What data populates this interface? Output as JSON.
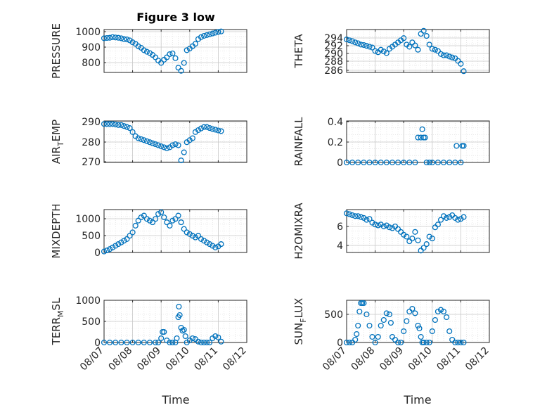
{
  "chart_data": [
    {
      "type": "scatter",
      "title": "Figure 3 low",
      "ylabel": "PRESSURE",
      "ylim": [
        740,
        1010
      ],
      "yticks": [
        "800",
        "900",
        "1000"
      ],
      "xlim": [
        0,
        5
      ],
      "xticks": [],
      "grid": true,
      "x": [
        0.0,
        0.1,
        0.2,
        0.3,
        0.4,
        0.5,
        0.6,
        0.7,
        0.8,
        0.9,
        1.0,
        1.1,
        1.2,
        1.3,
        1.4,
        1.5,
        1.6,
        1.7,
        1.8,
        1.9,
        2.0,
        2.1,
        2.2,
        2.3,
        2.4,
        2.5,
        2.6,
        2.7,
        2.8,
        2.9,
        3.0,
        3.1,
        3.2,
        3.3,
        3.4,
        3.5,
        3.6,
        3.7,
        3.8,
        3.9,
        4.0,
        4.1
      ],
      "y": [
        955,
        957,
        958,
        962,
        960,
        958,
        955,
        950,
        948,
        942,
        930,
        920,
        905,
        895,
        880,
        870,
        862,
        850,
        835,
        815,
        800,
        820,
        835,
        855,
        860,
        830,
        770,
        750,
        800,
        880,
        890,
        905,
        920,
        950,
        962,
        970,
        975,
        980,
        985,
        990,
        995,
        998
      ],
      "color": "#0072BD"
    },
    {
      "type": "scatter",
      "ylabel": "THETA",
      "ylim": [
        285.5,
        295.5
      ],
      "yticks": [
        "294",
        "292",
        "290",
        "288",
        "286"
      ],
      "xlim": [
        0,
        5
      ],
      "xticks": [],
      "grid": true,
      "x": [
        0.0,
        0.1,
        0.2,
        0.3,
        0.4,
        0.5,
        0.6,
        0.7,
        0.8,
        0.9,
        1.0,
        1.1,
        1.2,
        1.3,
        1.4,
        1.5,
        1.6,
        1.7,
        1.8,
        1.9,
        2.0,
        2.1,
        2.2,
        2.3,
        2.4,
        2.5,
        2.6,
        2.7,
        2.8,
        2.9,
        3.0,
        3.1,
        3.2,
        3.3,
        3.4,
        3.5,
        3.6,
        3.7,
        3.8,
        3.9,
        4.0,
        4.1
      ],
      "y": [
        293.2,
        293.0,
        292.8,
        292.5,
        292.3,
        292.0,
        291.9,
        291.7,
        291.5,
        291.3,
        290.5,
        290.2,
        290.8,
        290.4,
        290.0,
        291.0,
        291.5,
        292.0,
        292.5,
        293.0,
        293.5,
        292.0,
        291.5,
        292.5,
        291.8,
        290.8,
        294.5,
        295.2,
        294.0,
        292.0,
        291.0,
        290.8,
        290.5,
        289.8,
        289.5,
        289.5,
        289.2,
        289.0,
        288.8,
        288.2,
        287.5,
        285.8
      ],
      "color": "#0072BD"
    },
    {
      "type": "scatter",
      "ylabel": "AIR_TEMP",
      "ylim": [
        270,
        290.5
      ],
      "yticks": [
        "270",
        "280",
        "290"
      ],
      "xlim": [
        0,
        5
      ],
      "xticks": [],
      "grid": true,
      "x": [
        0.0,
        0.1,
        0.2,
        0.3,
        0.4,
        0.5,
        0.6,
        0.7,
        0.8,
        0.9,
        1.0,
        1.1,
        1.2,
        1.3,
        1.4,
        1.5,
        1.6,
        1.7,
        1.8,
        1.9,
        2.0,
        2.1,
        2.2,
        2.3,
        2.4,
        2.5,
        2.6,
        2.7,
        2.8,
        2.9,
        3.0,
        3.1,
        3.2,
        3.3,
        3.4,
        3.5,
        3.6,
        3.7,
        3.8,
        3.9,
        4.0,
        4.1
      ],
      "y": [
        289,
        289,
        289,
        289,
        288.8,
        288.5,
        288.5,
        288,
        287.5,
        287,
        285,
        283,
        282,
        281.5,
        281,
        280.5,
        280,
        279.5,
        279,
        278.5,
        278,
        277.5,
        277,
        277.5,
        278.5,
        279,
        278.5,
        271,
        275,
        280,
        281,
        282,
        285,
        286,
        286.8,
        287.5,
        287.5,
        287,
        286.5,
        286.2,
        285.8,
        285.5
      ],
      "color": "#0072BD"
    },
    {
      "type": "scatter",
      "ylabel": "RAINFALL",
      "ylim": [
        0,
        0.5
      ],
      "yticks": [
        "0",
        "0.2",
        "0.4"
      ],
      "xlim": [
        0,
        5
      ],
      "xticks": [],
      "grid": true,
      "x": [
        0.0,
        0.2,
        0.4,
        0.6,
        0.8,
        1.0,
        1.2,
        1.4,
        1.6,
        1.8,
        2.0,
        2.2,
        2.4,
        2.5,
        2.6,
        2.65,
        2.7,
        2.75,
        2.8,
        2.9,
        3.0,
        3.2,
        3.4,
        3.6,
        3.8,
        3.85,
        4.0,
        4.05,
        4.1
      ],
      "y": [
        0,
        0,
        0,
        0,
        0,
        0,
        0,
        0,
        0,
        0,
        0,
        0,
        0,
        0.3,
        0.3,
        0.4,
        0.3,
        0.3,
        0,
        0,
        0,
        0,
        0,
        0,
        0,
        0.2,
        0,
        0.2,
        0.2
      ],
      "color": "#0072BD"
    },
    {
      "type": "scatter",
      "ylabel": "MIXDEPTH",
      "ylim": [
        0,
        1280
      ],
      "yticks": [
        "0",
        "500",
        "1000"
      ],
      "xlim": [
        0,
        5
      ],
      "xticks": [],
      "grid": true,
      "x": [
        0.0,
        0.1,
        0.2,
        0.3,
        0.4,
        0.5,
        0.6,
        0.7,
        0.8,
        0.9,
        1.0,
        1.1,
        1.2,
        1.3,
        1.4,
        1.5,
        1.6,
        1.7,
        1.8,
        1.9,
        2.0,
        2.1,
        2.2,
        2.3,
        2.4,
        2.5,
        2.6,
        2.7,
        2.8,
        2.9,
        3.0,
        3.1,
        3.2,
        3.3,
        3.4,
        3.5,
        3.6,
        3.7,
        3.8,
        3.9,
        4.0,
        4.1
      ],
      "y": [
        30,
        60,
        100,
        150,
        200,
        250,
        300,
        350,
        400,
        500,
        600,
        800,
        950,
        1050,
        1100,
        1000,
        950,
        900,
        1000,
        1150,
        1200,
        1050,
        900,
        800,
        950,
        1000,
        1100,
        900,
        700,
        600,
        550,
        500,
        450,
        500,
        400,
        350,
        300,
        250,
        200,
        150,
        180,
        250
      ],
      "color": "#0072BD"
    },
    {
      "type": "scatter",
      "ylabel": "H2OMIXRA",
      "ylim": [
        3.3,
        7.9
      ],
      "yticks": [
        "4",
        "6"
      ],
      "xlim": [
        0,
        5
      ],
      "xticks": [],
      "grid": true,
      "x": [
        0.0,
        0.1,
        0.2,
        0.3,
        0.4,
        0.5,
        0.6,
        0.7,
        0.8,
        0.9,
        1.0,
        1.1,
        1.2,
        1.3,
        1.4,
        1.5,
        1.6,
        1.7,
        1.8,
        1.9,
        2.0,
        2.1,
        2.2,
        2.3,
        2.4,
        2.5,
        2.6,
        2.7,
        2.8,
        2.9,
        3.0,
        3.1,
        3.2,
        3.3,
        3.4,
        3.5,
        3.6,
        3.7,
        3.8,
        3.9,
        4.0,
        4.1
      ],
      "y": [
        7.5,
        7.4,
        7.3,
        7.2,
        7.2,
        7.1,
        7.0,
        6.8,
        6.9,
        6.5,
        6.3,
        6.2,
        6.3,
        6.1,
        6.2,
        6.0,
        5.9,
        6.1,
        5.8,
        5.5,
        5.2,
        5.0,
        4.5,
        4.8,
        5.5,
        4.6,
        3.5,
        3.8,
        4.2,
        5.0,
        4.8,
        6.0,
        6.3,
        6.8,
        7.2,
        7.0,
        7.1,
        7.3,
        7.0,
        6.8,
        6.9,
        7.1
      ],
      "color": "#0072BD"
    },
    {
      "type": "scatter",
      "ylabel": "TERR_MSL",
      "ylim": [
        0,
        1000
      ],
      "yticks": [
        "0",
        "500",
        "1000"
      ],
      "xlim": [
        0,
        5
      ],
      "xticks": [
        "08/07",
        "08/08",
        "08/09",
        "08/10",
        "08/11",
        "08/12"
      ],
      "xlabel": "Time",
      "grid": true,
      "x": [
        0.0,
        0.2,
        0.4,
        0.6,
        0.8,
        1.0,
        1.2,
        1.4,
        1.6,
        1.8,
        1.9,
        2.0,
        2.05,
        2.1,
        2.2,
        2.3,
        2.4,
        2.5,
        2.55,
        2.6,
        2.62,
        2.65,
        2.7,
        2.75,
        2.8,
        2.85,
        2.9,
        3.0,
        3.1,
        3.2,
        3.3,
        3.4,
        3.5,
        3.6,
        3.7,
        3.8,
        3.9,
        4.0,
        4.1
      ],
      "y": [
        0,
        0,
        0,
        0,
        0,
        0,
        0,
        0,
        0,
        0,
        0,
        100,
        250,
        250,
        50,
        0,
        0,
        0,
        100,
        600,
        850,
        650,
        350,
        280,
        300,
        150,
        0,
        50,
        100,
        80,
        20,
        0,
        0,
        0,
        0,
        100,
        150,
        120,
        20
      ],
      "color": "#0072BD"
    },
    {
      "type": "scatter",
      "ylabel": "SUN_FLUX",
      "ylim": [
        0,
        750
      ],
      "yticks": [
        "0",
        "500"
      ],
      "xlim": [
        0,
        5
      ],
      "xticks": [
        "08/07",
        "08/08",
        "08/09",
        "08/10",
        "08/11",
        "08/12"
      ],
      "xlabel": "Time",
      "grid": true,
      "x": [
        0.0,
        0.1,
        0.2,
        0.3,
        0.35,
        0.4,
        0.45,
        0.5,
        0.55,
        0.6,
        0.7,
        0.8,
        0.9,
        1.0,
        1.1,
        1.2,
        1.3,
        1.4,
        1.5,
        1.55,
        1.6,
        1.7,
        1.8,
        1.9,
        2.0,
        2.1,
        2.2,
        2.3,
        2.4,
        2.5,
        2.55,
        2.6,
        2.65,
        2.7,
        2.8,
        2.9,
        3.0,
        3.1,
        3.2,
        3.3,
        3.4,
        3.5,
        3.6,
        3.7,
        3.8,
        3.9,
        4.0,
        4.1
      ],
      "y": [
        0,
        0,
        0,
        50,
        150,
        300,
        550,
        700,
        700,
        700,
        500,
        300,
        100,
        0,
        100,
        300,
        400,
        520,
        500,
        350,
        100,
        50,
        0,
        0,
        200,
        380,
        550,
        600,
        520,
        300,
        250,
        100,
        0,
        0,
        0,
        0,
        200,
        400,
        550,
        580,
        550,
        450,
        200,
        50,
        0,
        0,
        0,
        0
      ],
      "color": "#0072BD"
    }
  ]
}
